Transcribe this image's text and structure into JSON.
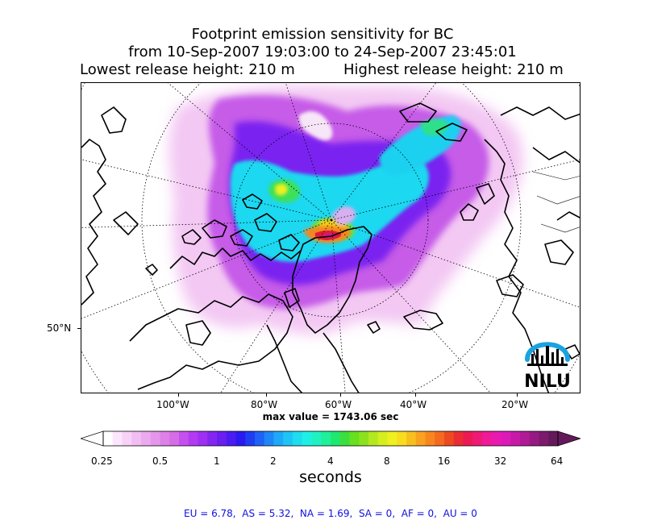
{
  "title": {
    "line1": "Footprint emission sensitivity for BC",
    "line2": "from 10-Sep-2007 19:03:00 to 24-Sep-2007 23:45:01",
    "lowest": "Lowest release height: 210 m",
    "highest": "Highest release height: 210 m"
  },
  "map": {
    "x_labels": [
      "100°W",
      "80°W",
      "60°W",
      "40°W",
      "20°W"
    ],
    "y_labels": [
      "50°N"
    ],
    "logo_text": "NILU",
    "logo_color": "#1aa3e0"
  },
  "max_value": "max value = 1743.06 sec",
  "colorbar": {
    "ticks": [
      "0.25",
      "0.5",
      "1",
      "2",
      "4",
      "8",
      "16",
      "32",
      "64"
    ],
    "unit": "seconds",
    "colors": [
      "#ffffff",
      "#fbe6fb",
      "#f7d2f7",
      "#f2bdf2",
      "#ecaaee",
      "#e596ea",
      "#de80e7",
      "#d66ce6",
      "#c64ff0",
      "#b33af2",
      "#9f2ff3",
      "#8426f2",
      "#6a1ff0",
      "#4b1cf2",
      "#2a1af0",
      "#1f3ef2",
      "#1f62f5",
      "#1f86f7",
      "#1fa8f8",
      "#1fc4f5",
      "#1fdcef",
      "#1ff0e6",
      "#1ff2c0",
      "#1ff09a",
      "#1fe870",
      "#3ce03e",
      "#66e01f",
      "#8ce21f",
      "#b4e81f",
      "#d4ee1f",
      "#eef01f",
      "#f8dc1f",
      "#f8c01f",
      "#f8a21f",
      "#f8861f",
      "#f46a1f",
      "#ee4a22",
      "#ea2c34",
      "#ec1a52",
      "#ee1a74",
      "#ee1a96",
      "#e81ab0",
      "#dc1ab8",
      "#c81aa8",
      "#b01a96",
      "#961a82",
      "#7c1a6c",
      "#641a5a"
    ]
  },
  "footer": "EU = 6.78,  AS = 5.32,  NA = 1.69,  SA = 0,  AF = 0,  AU = 0"
}
